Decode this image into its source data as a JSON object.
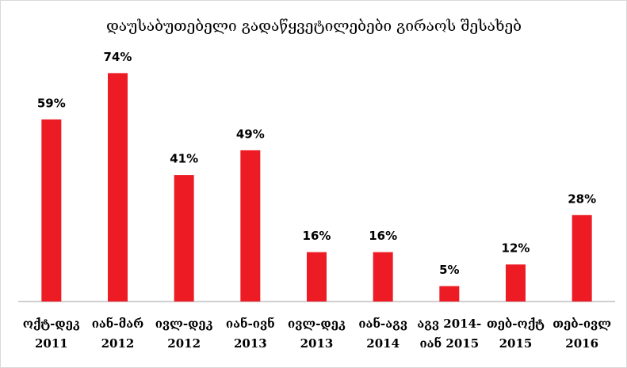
{
  "chart_data": {
    "type": "bar",
    "title": "დაუსაბუთებელი გადაწყვეტილებები გირაოს შესახებ",
    "categories": [
      "ოქტ-დეკ\n2011",
      "იან-მარ\n2012",
      "ივლ-დეკ\n2012",
      "იან-ივნ\n2013",
      "ივლ-დეკ\n2013",
      "იან-აგვ\n2014",
      "აგვ 2014-\nიან 2015",
      "თებ-ოქტ\n2015",
      "თებ-ივლ\n2016"
    ],
    "values": [
      59,
      74,
      41,
      49,
      16,
      16,
      5,
      12,
      28
    ],
    "value_labels": [
      "59%",
      "74%",
      "41%",
      "49%",
      "16%",
      "16%",
      "5%",
      "12%",
      "28%"
    ],
    "color": "#ed1c24",
    "ylim": [
      0,
      80
    ]
  }
}
